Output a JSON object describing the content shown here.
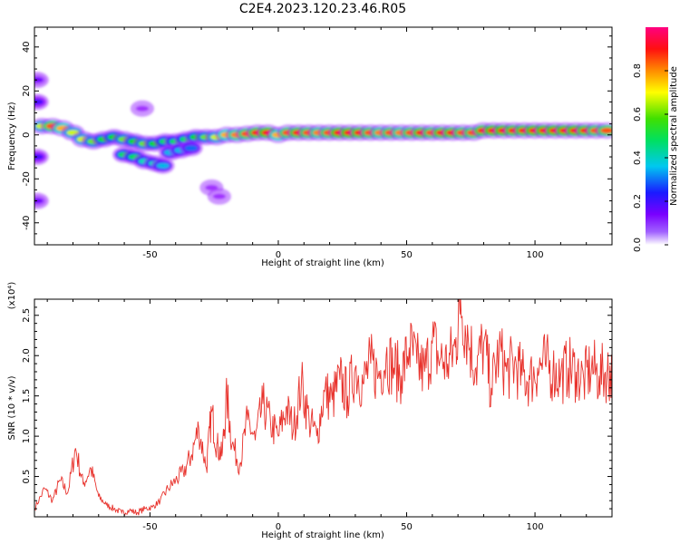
{
  "title": "C2E4.2023.120.23.46.R05",
  "colors": {
    "line": "#e8322c",
    "axis": "#000000"
  },
  "chart_data": [
    {
      "type": "heatmap",
      "xlabel": "Height of straight line (km)",
      "ylabel": "Frequency (Hz)",
      "xlim": [
        -95,
        130
      ],
      "ylim": [
        -50,
        49
      ],
      "x_ticks": [
        -50,
        0,
        50,
        100
      ],
      "y_ticks": [
        -40,
        -20,
        0,
        20,
        40
      ],
      "colorbar": {
        "label": "Normalized spectral amplitude",
        "range": [
          0,
          1
        ],
        "ticks": [
          "0.0",
          "0.2",
          "0.4",
          "0.6",
          "0.8"
        ],
        "colormap": [
          "#ffffff",
          "#8a00ff",
          "#1a1aff",
          "#00e0e0",
          "#00e000",
          "#ffff00",
          "#ff8000",
          "#ff0000",
          "#ff0080"
        ]
      },
      "ridge": [
        {
          "x": -92,
          "y": 4,
          "a": 0.6
        },
        {
          "x": -88,
          "y": 4,
          "a": 0.8
        },
        {
          "x": -84,
          "y": 3,
          "a": 0.7
        },
        {
          "x": -80,
          "y": 1,
          "a": 0.6
        },
        {
          "x": -76,
          "y": -2,
          "a": 0.6
        },
        {
          "x": -72,
          "y": -3,
          "a": 0.55
        },
        {
          "x": -68,
          "y": -2,
          "a": 0.5
        },
        {
          "x": -64,
          "y": -1,
          "a": 0.5
        },
        {
          "x": -60,
          "y": -2,
          "a": 0.55
        },
        {
          "x": -56,
          "y": -3,
          "a": 0.5
        },
        {
          "x": -52,
          "y": -4,
          "a": 0.55
        },
        {
          "x": -48,
          "y": -4,
          "a": 0.5
        },
        {
          "x": -44,
          "y": -3,
          "a": 0.45
        },
        {
          "x": -40,
          "y": -3,
          "a": 0.45
        },
        {
          "x": -36,
          "y": -2,
          "a": 0.45
        },
        {
          "x": -32,
          "y": -1,
          "a": 0.5
        },
        {
          "x": -28,
          "y": -1,
          "a": 0.55
        },
        {
          "x": -24,
          "y": -1,
          "a": 0.6
        },
        {
          "x": -20,
          "y": 0,
          "a": 0.7
        },
        {
          "x": -16,
          "y": 0,
          "a": 0.75
        },
        {
          "x": -12,
          "y": 0.5,
          "a": 0.8
        },
        {
          "x": -8,
          "y": 1,
          "a": 0.85
        },
        {
          "x": -4,
          "y": 1,
          "a": 0.9
        },
        {
          "x": 0,
          "y": 0,
          "a": 0.7
        },
        {
          "x": 4,
          "y": 1,
          "a": 0.8
        },
        {
          "x": 8,
          "y": 1,
          "a": 0.85
        },
        {
          "x": 12,
          "y": 1,
          "a": 0.8
        },
        {
          "x": 16,
          "y": 1,
          "a": 0.75
        },
        {
          "x": 20,
          "y": 1,
          "a": 0.8
        },
        {
          "x": 24,
          "y": 1,
          "a": 0.9
        },
        {
          "x": 28,
          "y": 1,
          "a": 0.9
        },
        {
          "x": 32,
          "y": 1,
          "a": 0.85
        },
        {
          "x": 36,
          "y": 1,
          "a": 0.8
        },
        {
          "x": 40,
          "y": 1,
          "a": 0.75
        },
        {
          "x": 44,
          "y": 1,
          "a": 0.8
        },
        {
          "x": 48,
          "y": 1,
          "a": 0.75
        },
        {
          "x": 52,
          "y": 1,
          "a": 0.8
        },
        {
          "x": 56,
          "y": 1,
          "a": 0.85
        },
        {
          "x": 60,
          "y": 1,
          "a": 0.8
        },
        {
          "x": 64,
          "y": 1,
          "a": 0.85
        },
        {
          "x": 68,
          "y": 1,
          "a": 0.85
        },
        {
          "x": 72,
          "y": 1,
          "a": 0.8
        },
        {
          "x": 76,
          "y": 1,
          "a": 0.8
        },
        {
          "x": 80,
          "y": 2,
          "a": 0.85
        },
        {
          "x": 84,
          "y": 2,
          "a": 0.9
        },
        {
          "x": 88,
          "y": 2,
          "a": 0.9
        },
        {
          "x": 92,
          "y": 2,
          "a": 0.85
        },
        {
          "x": 96,
          "y": 2,
          "a": 0.85
        },
        {
          "x": 100,
          "y": 2,
          "a": 0.9
        },
        {
          "x": 104,
          "y": 2,
          "a": 0.9
        },
        {
          "x": 108,
          "y": 2,
          "a": 0.9
        },
        {
          "x": 112,
          "y": 2,
          "a": 0.9
        },
        {
          "x": 116,
          "y": 2,
          "a": 0.9
        },
        {
          "x": 120,
          "y": 2,
          "a": 0.85
        },
        {
          "x": 124,
          "y": 2,
          "a": 0.8
        },
        {
          "x": 128,
          "y": 2,
          "a": 0.8
        }
      ],
      "branch": [
        {
          "x": -60,
          "y": -9,
          "a": 0.45
        },
        {
          "x": -56,
          "y": -10,
          "a": 0.45
        },
        {
          "x": -52,
          "y": -12,
          "a": 0.4
        },
        {
          "x": -48,
          "y": -13,
          "a": 0.4
        },
        {
          "x": -45,
          "y": -14,
          "a": 0.35
        },
        {
          "x": -42,
          "y": -8,
          "a": 0.35
        },
        {
          "x": -38,
          "y": -7,
          "a": 0.35
        },
        {
          "x": -34,
          "y": -6,
          "a": 0.3
        },
        {
          "x": -94,
          "y": 25,
          "a": 0.15
        },
        {
          "x": -94,
          "y": 15,
          "a": 0.2
        },
        {
          "x": -94,
          "y": -10,
          "a": 0.2
        },
        {
          "x": -94,
          "y": -30,
          "a": 0.15
        },
        {
          "x": -26,
          "y": -24,
          "a": 0.1
        },
        {
          "x": -23,
          "y": -28,
          "a": 0.1
        },
        {
          "x": -53,
          "y": 12,
          "a": 0.1
        }
      ]
    },
    {
      "type": "line",
      "xlabel": "Height of straight line (km)",
      "ylabel": "SNR (10 * v/v)",
      "y_multiplier": "(x10⁴)",
      "xlim": [
        -95,
        130
      ],
      "ylim": [
        0,
        2.7
      ],
      "x_ticks": [
        -50,
        0,
        50,
        100
      ],
      "y_ticks": [
        0.5,
        1.0,
        1.5,
        2.0,
        2.5
      ],
      "series": [
        {
          "x": [
            -95,
            -91,
            -88,
            -85,
            -82,
            -79,
            -76,
            -73,
            -70,
            -67,
            -64,
            -61,
            -58,
            -55,
            -52,
            -49,
            -46,
            -43,
            -40,
            -37,
            -34,
            -31,
            -28,
            -26,
            -24,
            -22,
            -20,
            -18,
            -15,
            -12,
            -9,
            -6,
            -3,
            0,
            3,
            6,
            9,
            12,
            15,
            18,
            21,
            24,
            27,
            30,
            33,
            36,
            39,
            42,
            45,
            48,
            51,
            54,
            57,
            60,
            63,
            66,
            69,
            71,
            74,
            77,
            80,
            83,
            86,
            89,
            92,
            95,
            98,
            101,
            104,
            107,
            110,
            113,
            116,
            119,
            122,
            125,
            128,
            130
          ],
          "y": [
            0.1,
            0.35,
            0.2,
            0.45,
            0.3,
            0.85,
            0.4,
            0.6,
            0.25,
            0.15,
            0.1,
            0.05,
            0.08,
            0.05,
            0.1,
            0.12,
            0.2,
            0.35,
            0.45,
            0.55,
            0.75,
            1.1,
            0.6,
            1.3,
            0.9,
            0.75,
            1.5,
            0.9,
            0.65,
            1.2,
            0.95,
            1.4,
            1.15,
            1.0,
            1.35,
            1.1,
            1.65,
            1.2,
            1.0,
            1.55,
            1.45,
            1.7,
            1.5,
            1.85,
            1.65,
            1.9,
            1.75,
            2.0,
            1.85,
            1.75,
            2.1,
            1.9,
            1.8,
            2.15,
            1.95,
            1.9,
            2.1,
            2.7,
            2.2,
            1.85,
            2.15,
            1.6,
            2.05,
            1.8,
            1.9,
            1.75,
            1.7,
            1.85,
            1.9,
            1.8,
            1.75,
            1.85,
            1.8,
            1.7,
            1.85,
            1.75,
            1.8,
            1.75
          ]
        }
      ]
    }
  ]
}
